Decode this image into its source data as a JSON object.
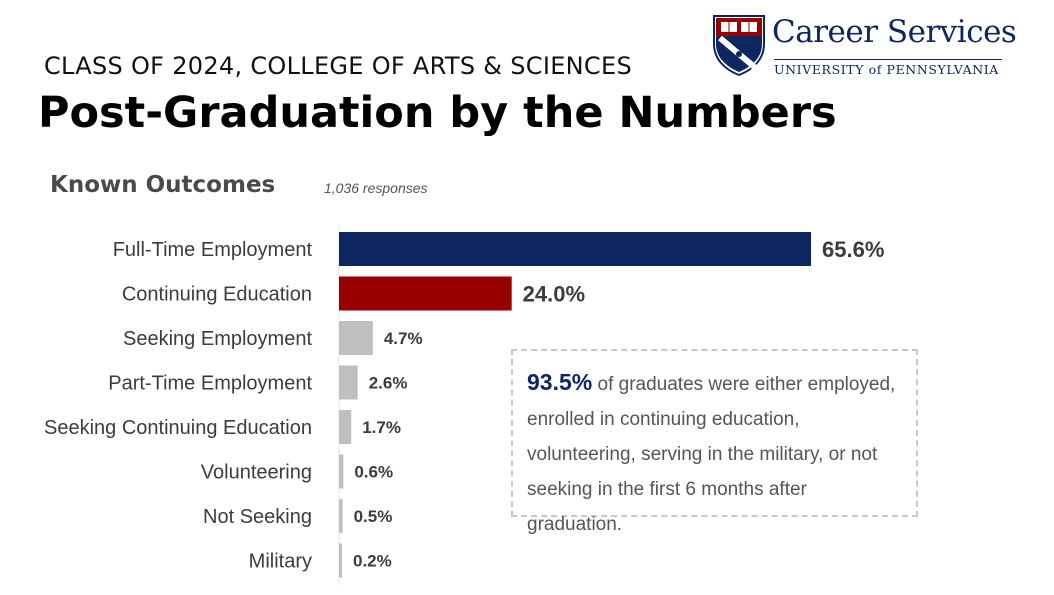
{
  "header": {
    "subtitle": "CLASS OF 2024, COLLEGE OF ARTS & SCIENCES",
    "title": "Post-Graduation by the Numbers"
  },
  "logo": {
    "wordmark": "Career Services",
    "university": "UNIVERSITY of PENNSYLVANIA"
  },
  "section": {
    "heading": "Known Outcomes",
    "responses": "1,036 responses"
  },
  "chart_data": {
    "type": "bar",
    "orientation": "horizontal",
    "categories": [
      "Full-Time Employment",
      "Continuing Education",
      "Seeking Employment",
      "Part-Time Employment",
      "Seeking Continuing Education",
      "Volunteering",
      "Not Seeking",
      "Military"
    ],
    "values": [
      65.6,
      24.0,
      4.7,
      2.6,
      1.7,
      0.6,
      0.5,
      0.2
    ],
    "data_labels": [
      "65.6%",
      "24.0%",
      "4.7%",
      "2.6%",
      "1.7%",
      "0.6%",
      "0.5%",
      "0.2%"
    ],
    "colors": [
      "#0e2660",
      "#990000",
      "#bfbfbf",
      "#bfbfbf",
      "#bfbfbf",
      "#bfbfbf",
      "#bfbfbf",
      "#bfbfbf"
    ],
    "xlim": [
      0,
      65.6
    ],
    "grid": false,
    "legend": "none"
  },
  "callout": {
    "stat": "93.5%",
    "text": " of graduates were either employed, enrolled in continuing education, volunteering, serving in the military, or not seeking in the first 6 months after graduation."
  },
  "colors": {
    "navy": "#0e2660",
    "red": "#990000",
    "gray": "#bfbfbf"
  }
}
